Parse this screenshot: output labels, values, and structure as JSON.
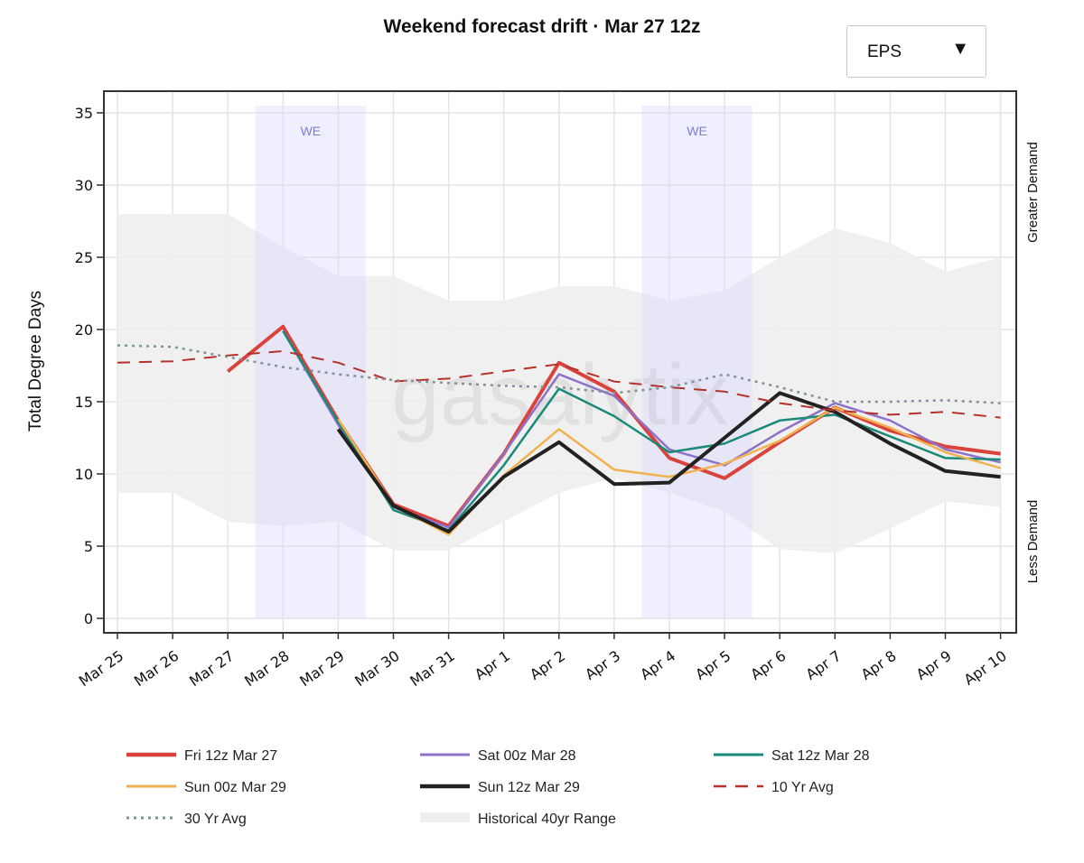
{
  "title": "Weekend forecast drift · Mar 27 12z",
  "model_selector": {
    "value": "EPS",
    "arrow": "▼"
  },
  "watermark": "gasalytix",
  "side_labels": {
    "top": "Greater Demand",
    "bottom": "Less Demand"
  },
  "colors": {
    "fri12z": "#d9433b",
    "sat00z": "#8e72c9",
    "sat12z": "#1a8a78",
    "sun00z": "#f0b24f",
    "sun12z": "#222222",
    "avg10": "#b5312a",
    "avg30": "#7f939a",
    "hist": "#efefef",
    "weekend": "#eeeeff"
  },
  "chart_data": {
    "type": "line",
    "title": "Weekend forecast drift · Mar 27 12z",
    "xlabel": "",
    "ylabel": "Total Degree Days",
    "ylim": [
      -1,
      36.5
    ],
    "yticks": [
      0,
      5,
      10,
      15,
      20,
      25,
      30,
      35
    ],
    "grid": true,
    "categories": [
      "Mar 25",
      "Mar 26",
      "Mar 27",
      "Mar 28",
      "Mar 29",
      "Mar 30",
      "Mar 31",
      "Apr 1",
      "Apr 2",
      "Apr 3",
      "Apr 4",
      "Apr 5",
      "Apr 6",
      "Apr 7",
      "Apr 8",
      "Apr 9",
      "Apr 10"
    ],
    "weekends": [
      {
        "label": "WE",
        "start": 2.5,
        "end": 4.5
      },
      {
        "label": "WE",
        "start": 9.5,
        "end": 11.5
      }
    ],
    "historical_range": {
      "name": "Historical 40yr Range",
      "low": [
        8.7,
        8.7,
        6.7,
        6.4,
        6.7,
        4.7,
        4.7,
        6.7,
        8.7,
        9.7,
        8.7,
        7.4,
        4.8,
        4.5,
        6.2,
        8.1,
        7.7
      ],
      "high": [
        28.0,
        28.0,
        28.0,
        25.7,
        23.7,
        23.7,
        22.0,
        22.0,
        23.0,
        23.0,
        22.0,
        22.7,
        25.0,
        27.0,
        26.0,
        24.0,
        25.0
      ]
    },
    "series": [
      {
        "name": "Fri 12z Mar 27",
        "key": "fri12z",
        "style": "solid",
        "width": 4,
        "values": [
          null,
          null,
          17.1,
          20.2,
          13.7,
          7.9,
          6.4,
          11.4,
          17.7,
          15.7,
          11.1,
          9.7,
          12.2,
          14.6,
          13.0,
          11.9,
          11.4
        ]
      },
      {
        "name": "Sat 00z Mar 28",
        "key": "sat00z",
        "style": "solid",
        "width": 2.5,
        "values": [
          null,
          null,
          null,
          19.9,
          13.4,
          7.7,
          6.3,
          11.4,
          16.9,
          15.4,
          11.7,
          10.6,
          12.9,
          14.9,
          13.7,
          11.7,
          10.8
        ]
      },
      {
        "name": "Sat 12z Mar 28",
        "key": "sat12z",
        "style": "solid",
        "width": 2.5,
        "values": [
          null,
          null,
          null,
          19.9,
          13.6,
          7.5,
          6.1,
          10.6,
          15.9,
          14.0,
          11.5,
          12.1,
          13.7,
          14.1,
          12.6,
          11.1,
          11.0
        ]
      },
      {
        "name": "Sun 00z Mar 29",
        "key": "sun00z",
        "style": "solid",
        "width": 2.5,
        "values": [
          null,
          null,
          null,
          null,
          13.8,
          7.8,
          5.8,
          9.9,
          13.1,
          10.3,
          9.8,
          10.7,
          12.3,
          14.6,
          13.2,
          11.5,
          10.4
        ]
      },
      {
        "name": "Sun 12z Mar 29",
        "key": "sun12z",
        "style": "solid",
        "width": 4,
        "values": [
          null,
          null,
          null,
          null,
          13.1,
          7.8,
          6.0,
          9.8,
          12.2,
          9.3,
          9.4,
          12.5,
          15.6,
          14.3,
          12.1,
          10.2,
          9.8
        ]
      },
      {
        "name": "10 Yr Avg",
        "key": "avg10",
        "style": "dash",
        "width": 2,
        "values": [
          17.7,
          17.8,
          18.2,
          18.5,
          17.7,
          16.4,
          16.6,
          17.1,
          17.6,
          16.4,
          16.0,
          15.7,
          14.9,
          14.4,
          14.1,
          14.3,
          13.9
        ]
      },
      {
        "name": "30 Yr Avg",
        "key": "avg30",
        "style": "dot",
        "width": 2.5,
        "values": [
          18.9,
          18.8,
          18.1,
          17.4,
          16.9,
          16.5,
          16.3,
          16.1,
          16.0,
          15.6,
          16.0,
          16.9,
          16.0,
          15.0,
          15.0,
          15.1,
          14.9
        ]
      }
    ],
    "legend": {
      "placement": "bottom",
      "items": [
        {
          "name": "Fri 12z Mar 27",
          "key": "fri12z",
          "kind": "line"
        },
        {
          "name": "Sat 00z Mar 28",
          "key": "sat00z",
          "kind": "line"
        },
        {
          "name": "Sat 12z Mar 28",
          "key": "sat12z",
          "kind": "line"
        },
        {
          "name": "Sun 00z Mar 29",
          "key": "sun00z",
          "kind": "line"
        },
        {
          "name": "Sun 12z Mar 29",
          "key": "sun12z",
          "kind": "line"
        },
        {
          "name": "10 Yr Avg",
          "key": "avg10",
          "kind": "line"
        },
        {
          "name": "30 Yr Avg",
          "key": "avg30",
          "kind": "line"
        },
        {
          "name": "Historical 40yr Range",
          "key": "hist",
          "kind": "band"
        }
      ]
    }
  }
}
